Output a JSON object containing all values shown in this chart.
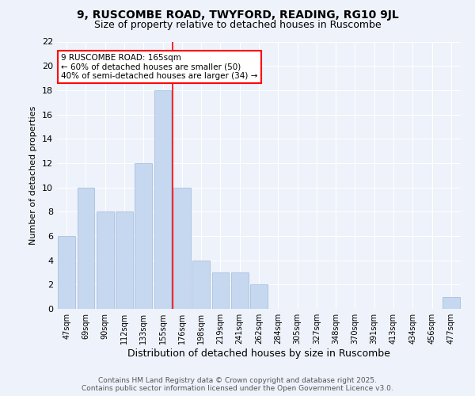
{
  "title": "9, RUSCOMBE ROAD, TWYFORD, READING, RG10 9JL",
  "subtitle": "Size of property relative to detached houses in Ruscombe",
  "xlabel": "Distribution of detached houses by size in Ruscombe",
  "ylabel": "Number of detached properties",
  "categories": [
    "47sqm",
    "69sqm",
    "90sqm",
    "112sqm",
    "133sqm",
    "155sqm",
    "176sqm",
    "198sqm",
    "219sqm",
    "241sqm",
    "262sqm",
    "284sqm",
    "305sqm",
    "327sqm",
    "348sqm",
    "370sqm",
    "391sqm",
    "413sqm",
    "434sqm",
    "456sqm",
    "477sqm"
  ],
  "values": [
    6,
    10,
    8,
    8,
    12,
    18,
    10,
    4,
    3,
    3,
    2,
    0,
    0,
    0,
    0,
    0,
    0,
    0,
    0,
    0,
    1
  ],
  "bar_color": "#c5d8f0",
  "bar_edge_color": "#a0b8d8",
  "ylim": [
    0,
    22
  ],
  "yticks": [
    0,
    2,
    4,
    6,
    8,
    10,
    12,
    14,
    16,
    18,
    20,
    22
  ],
  "property_label": "9 RUSCOMBE ROAD: 165sqm",
  "annotation_line1": "← 60% of detached houses are smaller (50)",
  "annotation_line2": "40% of semi-detached houses are larger (34) →",
  "background_color": "#eef2fa",
  "grid_color": "#ffffff",
  "footer_line1": "Contains HM Land Registry data © Crown copyright and database right 2025.",
  "footer_line2": "Contains public sector information licensed under the Open Government Licence v3.0."
}
